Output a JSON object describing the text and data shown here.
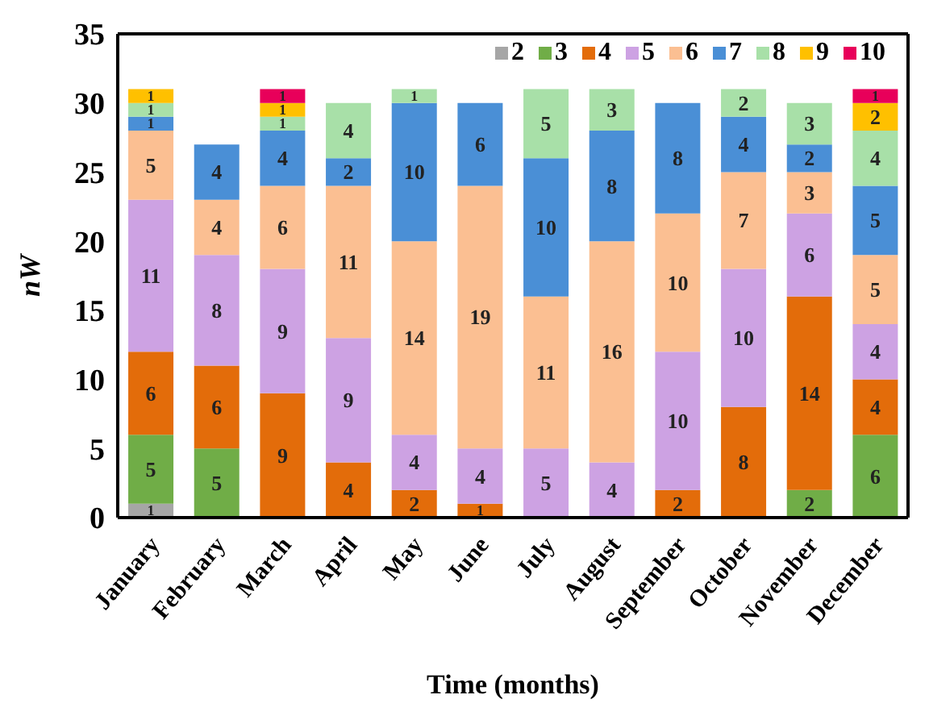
{
  "chart_data": {
    "type": "bar",
    "stacked": true,
    "xlabel": "Time (months)",
    "ylabel": "nW",
    "categories": [
      "January",
      "February",
      "March",
      "April",
      "May",
      "June",
      "July",
      "August",
      "September",
      "October",
      "November",
      "December"
    ],
    "series": [
      {
        "name": "2",
        "color": "#a6a6a6",
        "values": [
          1,
          null,
          null,
          null,
          null,
          null,
          null,
          null,
          null,
          null,
          null,
          null
        ]
      },
      {
        "name": "3",
        "color": "#70ad47",
        "values": [
          5,
          5,
          null,
          null,
          null,
          null,
          null,
          null,
          null,
          null,
          2,
          6
        ]
      },
      {
        "name": "4",
        "color": "#e36c0a",
        "values": [
          6,
          6,
          9,
          4,
          2,
          1,
          null,
          null,
          2,
          8,
          14,
          4
        ]
      },
      {
        "name": "5",
        "color": "#cda2e3",
        "values": [
          11,
          8,
          9,
          9,
          4,
          4,
          5,
          4,
          10,
          10,
          6,
          4
        ]
      },
      {
        "name": "6",
        "color": "#fbbf92",
        "values": [
          5,
          4,
          6,
          11,
          14,
          19,
          11,
          16,
          10,
          7,
          3,
          5
        ]
      },
      {
        "name": "7",
        "color": "#4a8fd6",
        "values": [
          1,
          4,
          4,
          2,
          10,
          6,
          10,
          8,
          8,
          4,
          2,
          5
        ]
      },
      {
        "name": "8",
        "color": "#a8e0a8",
        "values": [
          1,
          null,
          1,
          4,
          1,
          null,
          5,
          3,
          null,
          2,
          3,
          4
        ]
      },
      {
        "name": "9",
        "color": "#ffc000",
        "values": [
          1,
          null,
          1,
          null,
          null,
          null,
          null,
          null,
          null,
          null,
          null,
          2
        ]
      },
      {
        "name": "10",
        "color": "#e8005a",
        "values": [
          null,
          null,
          1,
          null,
          null,
          null,
          null,
          null,
          null,
          null,
          null,
          1
        ]
      }
    ],
    "ylim": [
      0,
      35
    ],
    "yticks": [
      0,
      5,
      10,
      15,
      20,
      25,
      30,
      35
    ],
    "grid": false,
    "legend": "top",
    "data_labels": true
  }
}
